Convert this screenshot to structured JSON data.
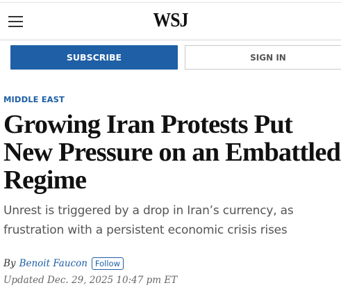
{
  "header": {
    "menu_icon": "hamburger-menu-icon",
    "logo": "WSJ"
  },
  "cta": {
    "subscribe_label": "SUBSCRIBE",
    "signin_label": "SIGN IN"
  },
  "article": {
    "section": "MIDDLE EAST",
    "headline": "Growing Iran Protests Put New Pressure on an Embattled Regime",
    "dek": "Unrest is triggered by a drop in Iran’s currency, as frustration with a persistent economic crisis rises",
    "byline_prefix": "By",
    "author": "Benoit Faucon",
    "follow_label": "Follow",
    "timestamp": "Updated Dec. 29, 2025 10:47 pm ET"
  },
  "colors": {
    "accent": "#1e5fa6",
    "text": "#111111",
    "muted": "#555555"
  }
}
